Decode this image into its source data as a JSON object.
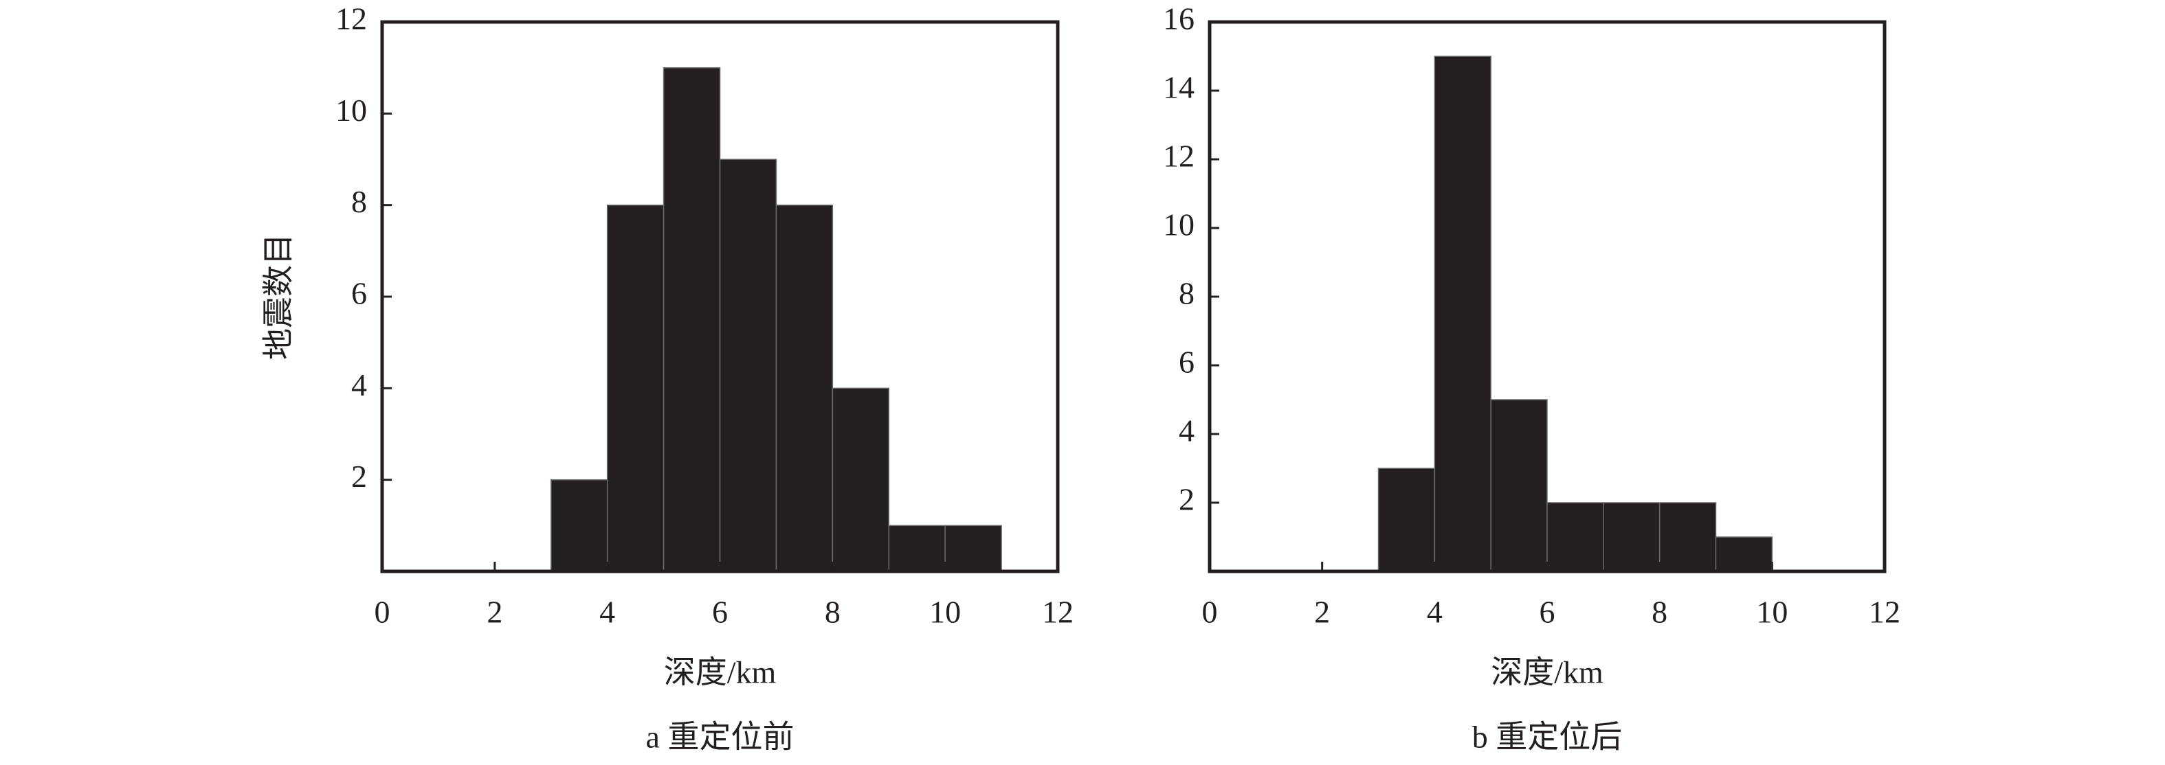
{
  "chart_data": [
    {
      "type": "histogram",
      "title": "a 重定位前",
      "xlabel": "深度/km",
      "ylabel": "地震数目",
      "bins": [
        0,
        1,
        2,
        3,
        4,
        5,
        6,
        7,
        8,
        9,
        10,
        11
      ],
      "values": [
        0,
        0,
        0,
        2,
        8,
        11,
        9,
        8,
        4,
        1,
        1
      ],
      "color": "#231f20",
      "xlim": [
        0,
        12
      ],
      "ylim": [
        0,
        12
      ],
      "xticks": [
        0,
        2,
        4,
        6,
        8,
        10,
        12
      ],
      "yticks": [
        2,
        4,
        6,
        8,
        10,
        12
      ]
    },
    {
      "type": "histogram",
      "title": "b 重定位后",
      "xlabel": "深度/km",
      "bins": [
        0,
        1,
        2,
        3,
        4,
        5,
        6,
        7,
        8,
        9,
        10
      ],
      "values": [
        0,
        0,
        0,
        3,
        15,
        5,
        2,
        2,
        2,
        1
      ],
      "color": "#231f20",
      "xlim": [
        0,
        12
      ],
      "ylim": [
        0,
        16
      ],
      "xticks": [
        0,
        2,
        4,
        6,
        8,
        10,
        12
      ],
      "yticks": [
        2,
        4,
        6,
        8,
        10,
        12,
        14,
        16
      ]
    }
  ]
}
